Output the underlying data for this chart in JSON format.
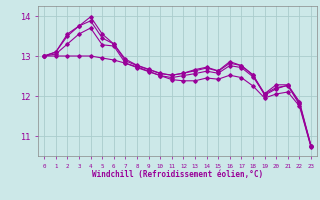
{
  "xlabel": "Windchill (Refroidissement éolien,°C)",
  "background_color": "#cce8e8",
  "grid_color": "#aacccc",
  "line_color": "#990099",
  "x_hours": [
    0,
    1,
    2,
    3,
    4,
    5,
    6,
    7,
    8,
    9,
    10,
    11,
    12,
    13,
    14,
    15,
    16,
    17,
    18,
    19,
    20,
    21,
    22,
    23
  ],
  "series1": [
    13.0,
    13.1,
    13.55,
    13.75,
    13.88,
    13.45,
    13.3,
    12.88,
    12.76,
    12.66,
    12.56,
    12.52,
    12.57,
    12.63,
    12.7,
    12.62,
    12.82,
    12.76,
    12.52,
    12.06,
    12.28,
    12.28,
    11.86,
    10.76
  ],
  "series2": [
    13.0,
    13.1,
    13.5,
    13.75,
    13.98,
    13.55,
    13.3,
    12.92,
    12.77,
    12.67,
    12.57,
    12.52,
    12.57,
    12.66,
    12.72,
    12.63,
    12.86,
    12.76,
    12.53,
    12.02,
    12.18,
    12.27,
    11.82,
    10.75
  ],
  "series3": [
    13.0,
    13.05,
    13.3,
    13.55,
    13.7,
    13.28,
    13.25,
    12.82,
    12.71,
    12.61,
    12.51,
    12.46,
    12.51,
    12.56,
    12.62,
    12.57,
    12.76,
    12.71,
    12.48,
    12.05,
    12.21,
    12.26,
    11.79,
    10.74
  ],
  "series4": [
    13.0,
    13.0,
    13.0,
    13.0,
    13.0,
    12.95,
    12.9,
    12.82,
    12.73,
    12.62,
    12.51,
    12.41,
    12.38,
    12.38,
    12.45,
    12.42,
    12.52,
    12.46,
    12.25,
    11.95,
    12.05,
    12.1,
    11.75,
    10.72
  ],
  "ylim": [
    10.5,
    14.25
  ],
  "yticks": [
    11,
    12,
    13,
    14
  ],
  "xtick_labels": [
    "0",
    "1",
    "2",
    "3",
    "4",
    "5",
    "6",
    "7",
    "8",
    "9",
    "10",
    "11",
    "12",
    "13",
    "14",
    "15",
    "16",
    "17",
    "18",
    "19",
    "20",
    "21",
    "22",
    "23"
  ]
}
